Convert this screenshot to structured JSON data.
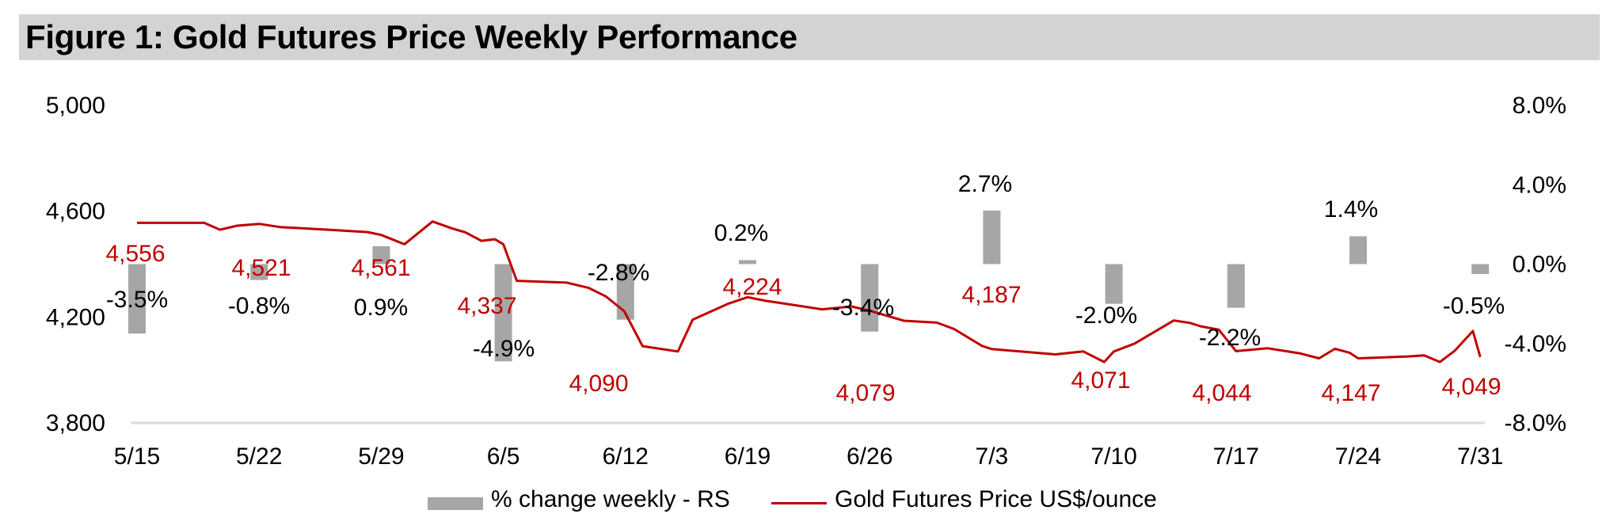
{
  "title": "Figure 1: Gold Futures Price Weekly Performance",
  "colors": {
    "bar": "#a6a6a6",
    "line": "#c00000",
    "axis": "#d9d9d9",
    "title_bg": "#d4d3d3"
  },
  "legend": {
    "bar_label": "% change weekly - RS",
    "line_label": "Gold Futures Price US$/ounce"
  },
  "chart_data": {
    "type": "bar+line",
    "title": "Figure 1: Gold Futures Price Weekly Performance",
    "x_tick_labels": [
      "5/15",
      "5/22",
      "5/29",
      "6/5",
      "6/12",
      "6/19",
      "6/26",
      "7/3",
      "7/10",
      "7/17",
      "7/24",
      "7/31"
    ],
    "y_left": {
      "ticks": [
        "5,000",
        "4,600",
        "4,200",
        "3,800"
      ],
      "range": [
        3800,
        5000
      ]
    },
    "y_right": {
      "ticks": [
        "8.0%",
        "4.0%",
        "0.0%",
        "-4.0%",
        "-8.0%"
      ],
      "range": [
        -8,
        8
      ]
    },
    "legend_position": "bottom",
    "grid": false,
    "series": [
      {
        "name": "% change weekly - RS",
        "type": "bar",
        "axis": "right",
        "values": [
          -3.5,
          -0.8,
          0.9,
          -4.9,
          -2.8,
          0.2,
          -3.4,
          2.7,
          -2.0,
          -2.2,
          1.4,
          -0.5
        ],
        "labels": [
          "-3.5%",
          "-0.8%",
          "0.9%",
          "-4.9%",
          "-2.8%",
          "0.2%",
          "-3.4%",
          "2.7%",
          "-2.0%",
          "-2.2%",
          "1.4%",
          "-0.5%"
        ]
      },
      {
        "name": "Gold Futures Price US$/ounce",
        "type": "line",
        "axis": "left",
        "x": [
          0,
          0.36,
          0.55,
          0.68,
          0.82,
          1.0,
          1.17,
          1.57,
          1.89,
          2.0,
          2.19,
          2.42,
          2.58,
          2.69,
          2.82,
          2.93,
          3.0,
          3.11,
          3.52,
          3.7,
          3.84,
          3.99,
          4.14,
          4.43,
          4.55,
          4.84,
          5.0,
          5.14,
          5.61,
          5.85,
          6.0,
          6.28,
          6.55,
          6.69,
          6.92,
          7.0,
          7.52,
          7.75,
          7.92,
          8.0,
          8.17,
          8.49,
          8.62,
          8.71,
          8.86,
          9.0,
          9.26,
          9.52,
          9.68,
          9.81,
          9.93,
          10.0,
          10.41,
          10.54,
          10.67,
          10.79,
          10.94,
          11.0
        ],
        "y": [
          4556,
          4556,
          4556,
          4530,
          4545,
          4552,
          4540,
          4530,
          4521,
          4510,
          4475,
          4561,
          4535,
          4520,
          4488,
          4494,
          4475,
          4337,
          4330,
          4310,
          4278,
          4222,
          4090,
          4070,
          4190,
          4250,
          4275,
          4262,
          4229,
          4240,
          4224,
          4186,
          4179,
          4155,
          4091,
          4079,
          4059,
          4070,
          4030,
          4070,
          4100,
          4187,
          4178,
          4165,
          4152,
          4071,
          4082,
          4063,
          4044,
          4080,
          4065,
          4044,
          4051,
          4055,
          4030,
          4072,
          4147,
          4049
        ]
      }
    ],
    "line_labels": [
      {
        "x": 0,
        "y": 4556,
        "text": "4,556"
      },
      {
        "x": 1,
        "y": 4521,
        "text": "4,521"
      },
      {
        "x": 2,
        "y": 4561,
        "text": "4,561"
      },
      {
        "x": 3,
        "y": 4337,
        "text": "4,337"
      },
      {
        "x": 4,
        "y": 4090,
        "text": "4,090"
      },
      {
        "x": 5,
        "y": 4224,
        "text": "4,224"
      },
      {
        "x": 6,
        "y": 4079,
        "text": "4,079"
      },
      {
        "x": 7,
        "y": 4187,
        "text": "4,187"
      },
      {
        "x": 8,
        "y": 4071,
        "text": "4,071"
      },
      {
        "x": 9,
        "y": 4044,
        "text": "4,044"
      },
      {
        "x": 10,
        "y": 4147,
        "text": "4,147"
      },
      {
        "x": 11,
        "y": 4049,
        "text": "4,049"
      }
    ]
  }
}
